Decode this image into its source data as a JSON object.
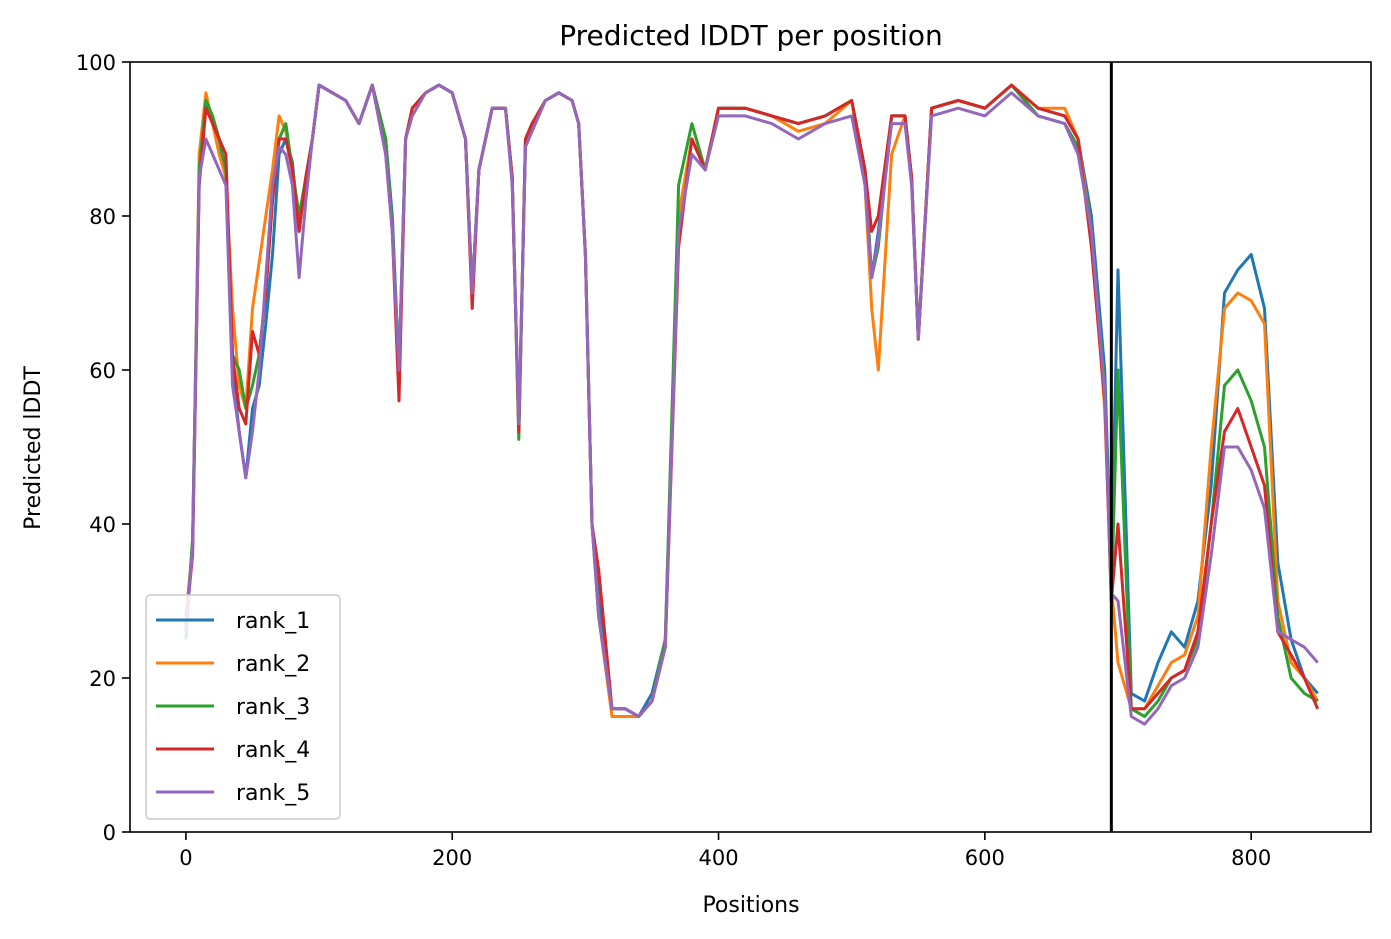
{
  "chart_data": {
    "type": "line",
    "title": "Predicted lDDT per position",
    "xlabel": "Positions",
    "ylabel": "Predicted lDDT",
    "xlim": [
      -42,
      890
    ],
    "ylim": [
      0,
      100
    ],
    "xticks": [
      0,
      200,
      400,
      600,
      800
    ],
    "yticks": [
      0,
      20,
      40,
      60,
      80,
      100
    ],
    "grid": false,
    "legend_position": "lower-left",
    "vline_x": 695,
    "vline_color": "#000000",
    "x": [
      0,
      5,
      10,
      15,
      20,
      25,
      30,
      35,
      40,
      45,
      50,
      55,
      60,
      65,
      70,
      75,
      80,
      85,
      90,
      95,
      100,
      110,
      120,
      130,
      140,
      150,
      155,
      160,
      165,
      170,
      180,
      190,
      200,
      210,
      215,
      220,
      230,
      240,
      245,
      250,
      255,
      260,
      270,
      280,
      290,
      295,
      300,
      305,
      310,
      320,
      330,
      340,
      350,
      360,
      370,
      380,
      390,
      400,
      420,
      440,
      460,
      480,
      500,
      510,
      515,
      520,
      530,
      540,
      545,
      550,
      560,
      580,
      600,
      620,
      640,
      660,
      670,
      680,
      690,
      695,
      700,
      710,
      720,
      730,
      740,
      750,
      760,
      770,
      780,
      790,
      800,
      810,
      820,
      830,
      840,
      850
    ],
    "series": [
      {
        "name": "rank_1",
        "color": "#1f77b4",
        "values": [
          25,
          38,
          85,
          95,
          92,
          90,
          85,
          60,
          52,
          46,
          55,
          58,
          66,
          75,
          88,
          90,
          87,
          78,
          85,
          90,
          97,
          96,
          95,
          92,
          97,
          90,
          80,
          60,
          90,
          94,
          96,
          97,
          96,
          90,
          70,
          86,
          94,
          94,
          85,
          52,
          90,
          92,
          95,
          96,
          95,
          92,
          75,
          40,
          30,
          16,
          16,
          15,
          18,
          25,
          80,
          90,
          86,
          94,
          94,
          93,
          92,
          93,
          95,
          86,
          72,
          78,
          93,
          93,
          85,
          64,
          94,
          95,
          94,
          97,
          94,
          93,
          90,
          80,
          60,
          34,
          73,
          18,
          17,
          22,
          26,
          24,
          30,
          45,
          70,
          73,
          75,
          68,
          35,
          25,
          20,
          18
        ]
      },
      {
        "name": "rank_2",
        "color": "#ff7f0e",
        "values": [
          28,
          37,
          88,
          96,
          92,
          88,
          85,
          68,
          58,
          55,
          68,
          74,
          80,
          86,
          93,
          91,
          86,
          80,
          84,
          90,
          97,
          96,
          95,
          92,
          97,
          90,
          78,
          58,
          90,
          94,
          96,
          97,
          96,
          90,
          70,
          86,
          94,
          94,
          85,
          52,
          90,
          92,
          95,
          96,
          95,
          92,
          75,
          40,
          28,
          15,
          15,
          15,
          17,
          25,
          80,
          90,
          86,
          94,
          94,
          93,
          91,
          92,
          95,
          84,
          68,
          60,
          88,
          93,
          85,
          64,
          94,
          95,
          94,
          97,
          94,
          94,
          90,
          78,
          55,
          32,
          22,
          16,
          16,
          19,
          22,
          23,
          28,
          50,
          68,
          70,
          69,
          66,
          30,
          22,
          20,
          17
        ]
      },
      {
        "name": "rank_3",
        "color": "#2ca02c",
        "values": [
          26,
          38,
          86,
          95,
          93,
          90,
          86,
          62,
          60,
          55,
          58,
          62,
          70,
          82,
          90,
          92,
          86,
          80,
          85,
          90,
          97,
          96,
          95,
          92,
          97,
          90,
          79,
          60,
          90,
          94,
          96,
          97,
          96,
          90,
          70,
          86,
          94,
          94,
          85,
          51,
          90,
          92,
          95,
          96,
          95,
          92,
          75,
          40,
          28,
          16,
          16,
          15,
          17,
          25,
          84,
          92,
          86,
          94,
          94,
          93,
          92,
          93,
          95,
          86,
          72,
          76,
          93,
          93,
          85,
          64,
          94,
          95,
          94,
          97,
          93,
          92,
          89,
          78,
          58,
          30,
          60,
          16,
          15,
          17,
          20,
          21,
          25,
          40,
          58,
          60,
          56,
          50,
          28,
          20,
          18,
          17
        ]
      },
      {
        "name": "rank_4",
        "color": "#d62728",
        "values": [
          27,
          36,
          84,
          94,
          92,
          90,
          88,
          62,
          55,
          53,
          65,
          62,
          70,
          82,
          90,
          90,
          86,
          78,
          85,
          90,
          97,
          96,
          95,
          92,
          97,
          88,
          78,
          56,
          90,
          94,
          96,
          97,
          96,
          90,
          68,
          86,
          94,
          94,
          85,
          52,
          90,
          92,
          95,
          96,
          95,
          92,
          75,
          40,
          34,
          16,
          16,
          15,
          17,
          24,
          76,
          90,
          86,
          94,
          94,
          93,
          92,
          93,
          95,
          86,
          78,
          80,
          93,
          93,
          85,
          64,
          94,
          95,
          94,
          97,
          94,
          93,
          90,
          76,
          56,
          30,
          40,
          16,
          16,
          18,
          20,
          21,
          26,
          40,
          52,
          55,
          50,
          45,
          26,
          23,
          20,
          16
        ]
      },
      {
        "name": "rank_5",
        "color": "#9467bd",
        "values": [
          26,
          37,
          85,
          90,
          88,
          86,
          84,
          58,
          52,
          46,
          52,
          60,
          72,
          84,
          89,
          88,
          84,
          72,
          82,
          90,
          97,
          96,
          95,
          92,
          97,
          88,
          78,
          60,
          90,
          93,
          96,
          97,
          96,
          90,
          70,
          86,
          94,
          94,
          84,
          53,
          89,
          91,
          95,
          96,
          95,
          92,
          75,
          40,
          28,
          16,
          16,
          15,
          17,
          24,
          78,
          88,
          86,
          93,
          93,
          92,
          90,
          92,
          93,
          84,
          72,
          77,
          92,
          92,
          84,
          64,
          93,
          94,
          93,
          96,
          93,
          92,
          88,
          78,
          57,
          31,
          30,
          15,
          14,
          16,
          19,
          20,
          24,
          36,
          50,
          50,
          47,
          42,
          26,
          25,
          24,
          22
        ]
      }
    ]
  }
}
